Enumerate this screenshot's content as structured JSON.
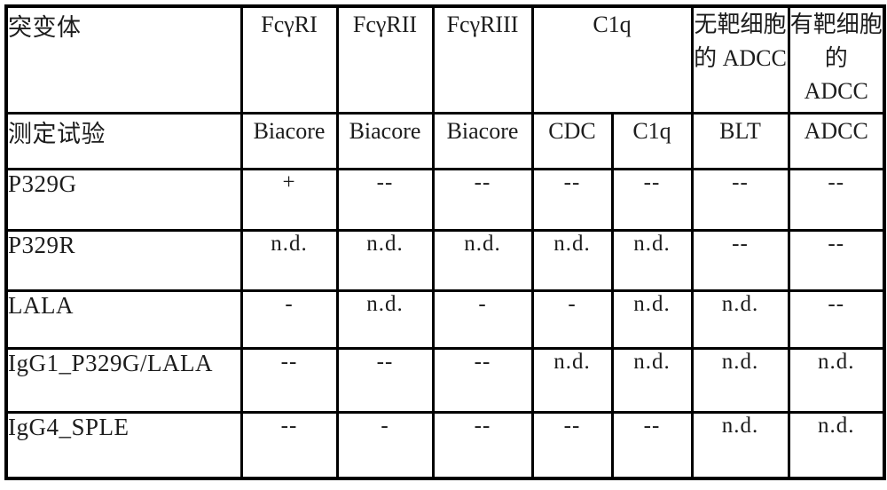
{
  "table": {
    "header_row1": {
      "mutant": "突变体",
      "fcgri": "FcγRI",
      "fcgrii": "FcγRII",
      "fcgriii": "FcγRIII",
      "c1q_group": "C1q",
      "adcc_no_target": "无靶细胞的 ADCC",
      "adcc_with_target": "有靶细胞的 ADCC"
    },
    "header_row2": {
      "assay": "测定试验",
      "fcgri_assay": "Biacore",
      "fcgrii_assay": "Biacore",
      "fcgriii_assay": "Biacore",
      "cdc_assay": "CDC",
      "c1q_assay": "C1q",
      "blt_assay": "BLT",
      "adcc_assay": "ADCC"
    },
    "rows": [
      {
        "label": "P329G",
        "values": [
          "+",
          "--",
          "--",
          "--",
          "--",
          "--",
          "--"
        ]
      },
      {
        "label": "P329R",
        "values": [
          "n.d.",
          "n.d.",
          "n.d.",
          "n.d.",
          "n.d.",
          "--",
          "--"
        ]
      },
      {
        "label": "LALA",
        "values": [
          "-",
          "n.d.",
          "-",
          "-",
          "n.d.",
          "n.d.",
          "--"
        ]
      },
      {
        "label": "IgG1_P329G/LALA",
        "values": [
          "--",
          "--",
          "--",
          "n.d.",
          "n.d.",
          "n.d.",
          "n.d."
        ]
      },
      {
        "label": "IgG4_SPLE",
        "values": [
          "--",
          "-",
          "--",
          "--",
          "--",
          "n.d.",
          "n.d."
        ]
      }
    ],
    "colors": {
      "border": "#000000",
      "background": "#ffffff",
      "text": "#1c1c1c"
    }
  }
}
